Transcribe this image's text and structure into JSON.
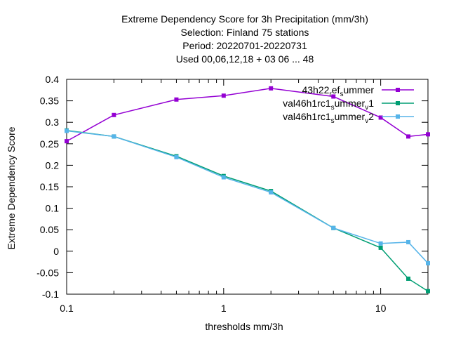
{
  "chart_data": {
    "type": "line",
    "title_lines": [
      "Extreme Dependency Score  for 3h Precipitation (mm/3h)",
      "Selection: Finland     75 stations",
      "Period: 20220701-20220731",
      "Used  00,06,12,18  + 03 06 ... 48"
    ],
    "xlabel": "thresholds mm/3h",
    "ylabel": "Extreme Dependency Score",
    "xscale": "log",
    "xlim": [
      0.1,
      20
    ],
    "ylim": [
      -0.1,
      0.4
    ],
    "xticks": [
      {
        "value": 0.1,
        "label": "0.1"
      },
      {
        "value": 1,
        "label": "1"
      },
      {
        "value": 10,
        "label": "10"
      }
    ],
    "xminor_ticks": [
      0.2,
      0.3,
      0.4,
      0.5,
      0.6,
      0.7,
      0.8,
      0.9,
      2,
      3,
      4,
      5,
      6,
      7,
      8,
      9,
      20
    ],
    "yticks": [
      {
        "value": -0.1,
        "label": "-0.1"
      },
      {
        "value": -0.05,
        "label": "-0.05"
      },
      {
        "value": 0,
        "label": "0"
      },
      {
        "value": 0.05,
        "label": "0.05"
      },
      {
        "value": 0.1,
        "label": "0.1"
      },
      {
        "value": 0.15,
        "label": "0.15"
      },
      {
        "value": 0.2,
        "label": "0.2"
      },
      {
        "value": 0.25,
        "label": "0.25"
      },
      {
        "value": 0.3,
        "label": "0.3"
      },
      {
        "value": 0.35,
        "label": "0.35"
      },
      {
        "value": 0.4,
        "label": "0.4"
      }
    ],
    "grid": false,
    "legend_position": "top-right",
    "series": [
      {
        "name_parts": [
          {
            "text": "43h22",
            "sub": false
          },
          {
            "text": "r",
            "sub": true
          },
          {
            "text": "ef",
            "sub": false
          },
          {
            "text": "s",
            "sub": true
          },
          {
            "text": "ummer",
            "sub": false
          }
        ],
        "color": "#9400d3",
        "x": [
          0.1,
          0.2,
          0.5,
          1,
          2,
          5,
          10,
          15,
          20
        ],
        "y": [
          0.256,
          0.317,
          0.353,
          0.362,
          0.379,
          0.36,
          0.311,
          0.267,
          0.272
        ]
      },
      {
        "name_parts": [
          {
            "text": "val46h1rc1",
            "sub": false
          },
          {
            "text": "s",
            "sub": true
          },
          {
            "text": "ummer",
            "sub": false
          },
          {
            "text": "v",
            "sub": true
          },
          {
            "text": "1",
            "sub": false
          }
        ],
        "color": "#009e73",
        "x": [
          0.1,
          0.2,
          0.5,
          1,
          2,
          5,
          10,
          15,
          20
        ],
        "y": [
          0.281,
          0.267,
          0.221,
          0.175,
          0.14,
          0.054,
          0.008,
          -0.064,
          -0.093
        ]
      },
      {
        "name_parts": [
          {
            "text": "val46h1rc1",
            "sub": false
          },
          {
            "text": "s",
            "sub": true
          },
          {
            "text": "ummer",
            "sub": false
          },
          {
            "text": "v",
            "sub": true
          },
          {
            "text": "2",
            "sub": false
          }
        ],
        "color": "#56b4e9",
        "x": [
          0.1,
          0.2,
          0.5,
          1,
          2,
          5,
          10,
          15,
          20
        ],
        "y": [
          0.28,
          0.267,
          0.219,
          0.172,
          0.137,
          0.054,
          0.018,
          0.021,
          -0.028
        ]
      }
    ]
  }
}
